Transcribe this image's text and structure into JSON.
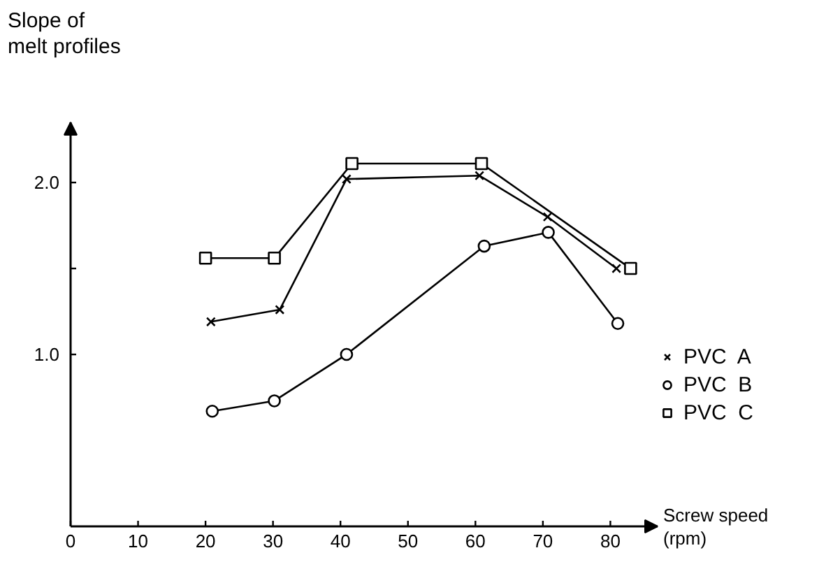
{
  "chart_data": {
    "type": "line",
    "xlabel": "Screw speed\n(rpm)",
    "ylabel": "Slope of\nmelt profiles",
    "xlim": [
      0,
      87
    ],
    "ylim": [
      0,
      2.35
    ],
    "xticks": [
      0,
      10,
      20,
      30,
      40,
      50,
      60,
      70,
      80
    ],
    "yticks": [
      {
        "value": 1.0,
        "label": "1.0"
      },
      {
        "value": 1.5,
        "label": null
      },
      {
        "value": 2.0,
        "label": "2.0"
      }
    ],
    "grid": false,
    "legend": "right",
    "series": [
      {
        "name": "PVC  A",
        "color": "#000000",
        "marker": "cross",
        "x": [
          20.8,
          31,
          40.9,
          60.6,
          70.7,
          80.9
        ],
        "values": [
          1.19,
          1.26,
          2.02,
          2.04,
          1.8,
          1.5
        ]
      },
      {
        "name": "PVC  B",
        "color": "#000000",
        "marker": "circle",
        "x": [
          21,
          30.2,
          40.9,
          61.3,
          70.8,
          81.1
        ],
        "values": [
          0.67,
          0.73,
          1.0,
          1.63,
          1.71,
          1.18
        ]
      },
      {
        "name": "PVC  C",
        "color": "#000000",
        "marker": "square",
        "x": [
          20,
          30.2,
          41.7,
          60.9,
          83
        ],
        "values": [
          1.56,
          1.56,
          2.11,
          2.11,
          1.5
        ]
      }
    ]
  }
}
